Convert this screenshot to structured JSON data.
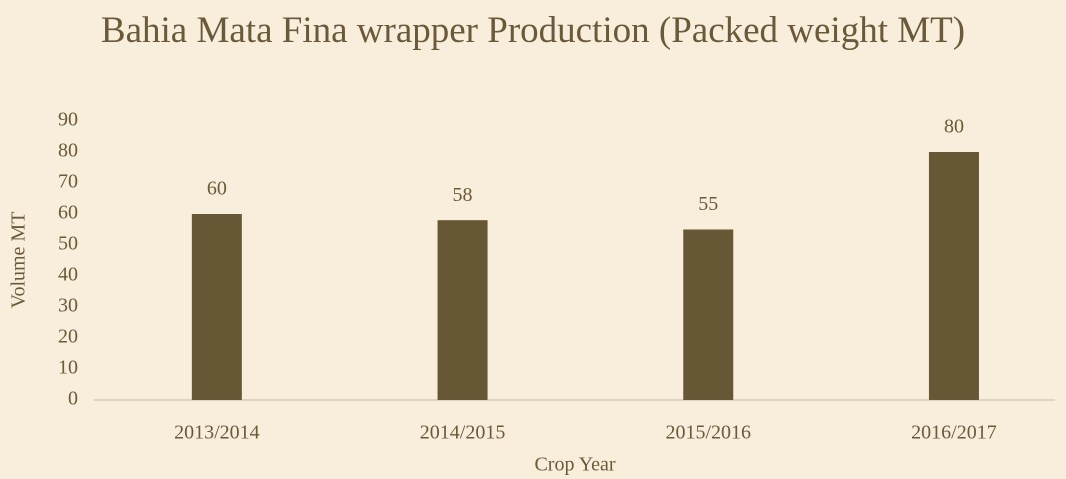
{
  "chart_data": {
    "type": "bar",
    "title": "Bahia Mata Fina wrapper Production (Packed weight MT)",
    "x_label": "Crop Year",
    "y_label": "Volume MT",
    "categories": [
      "2013/2014",
      "2014/2015",
      "2015/2016",
      "2016/2017"
    ],
    "values": [
      60,
      58,
      55,
      80
    ],
    "color": "#665735",
    "ylim": [
      0,
      90
    ],
    "yticks": [
      0,
      10,
      20,
      30,
      40,
      50,
      60,
      70,
      80,
      90
    ],
    "grid": false
  }
}
